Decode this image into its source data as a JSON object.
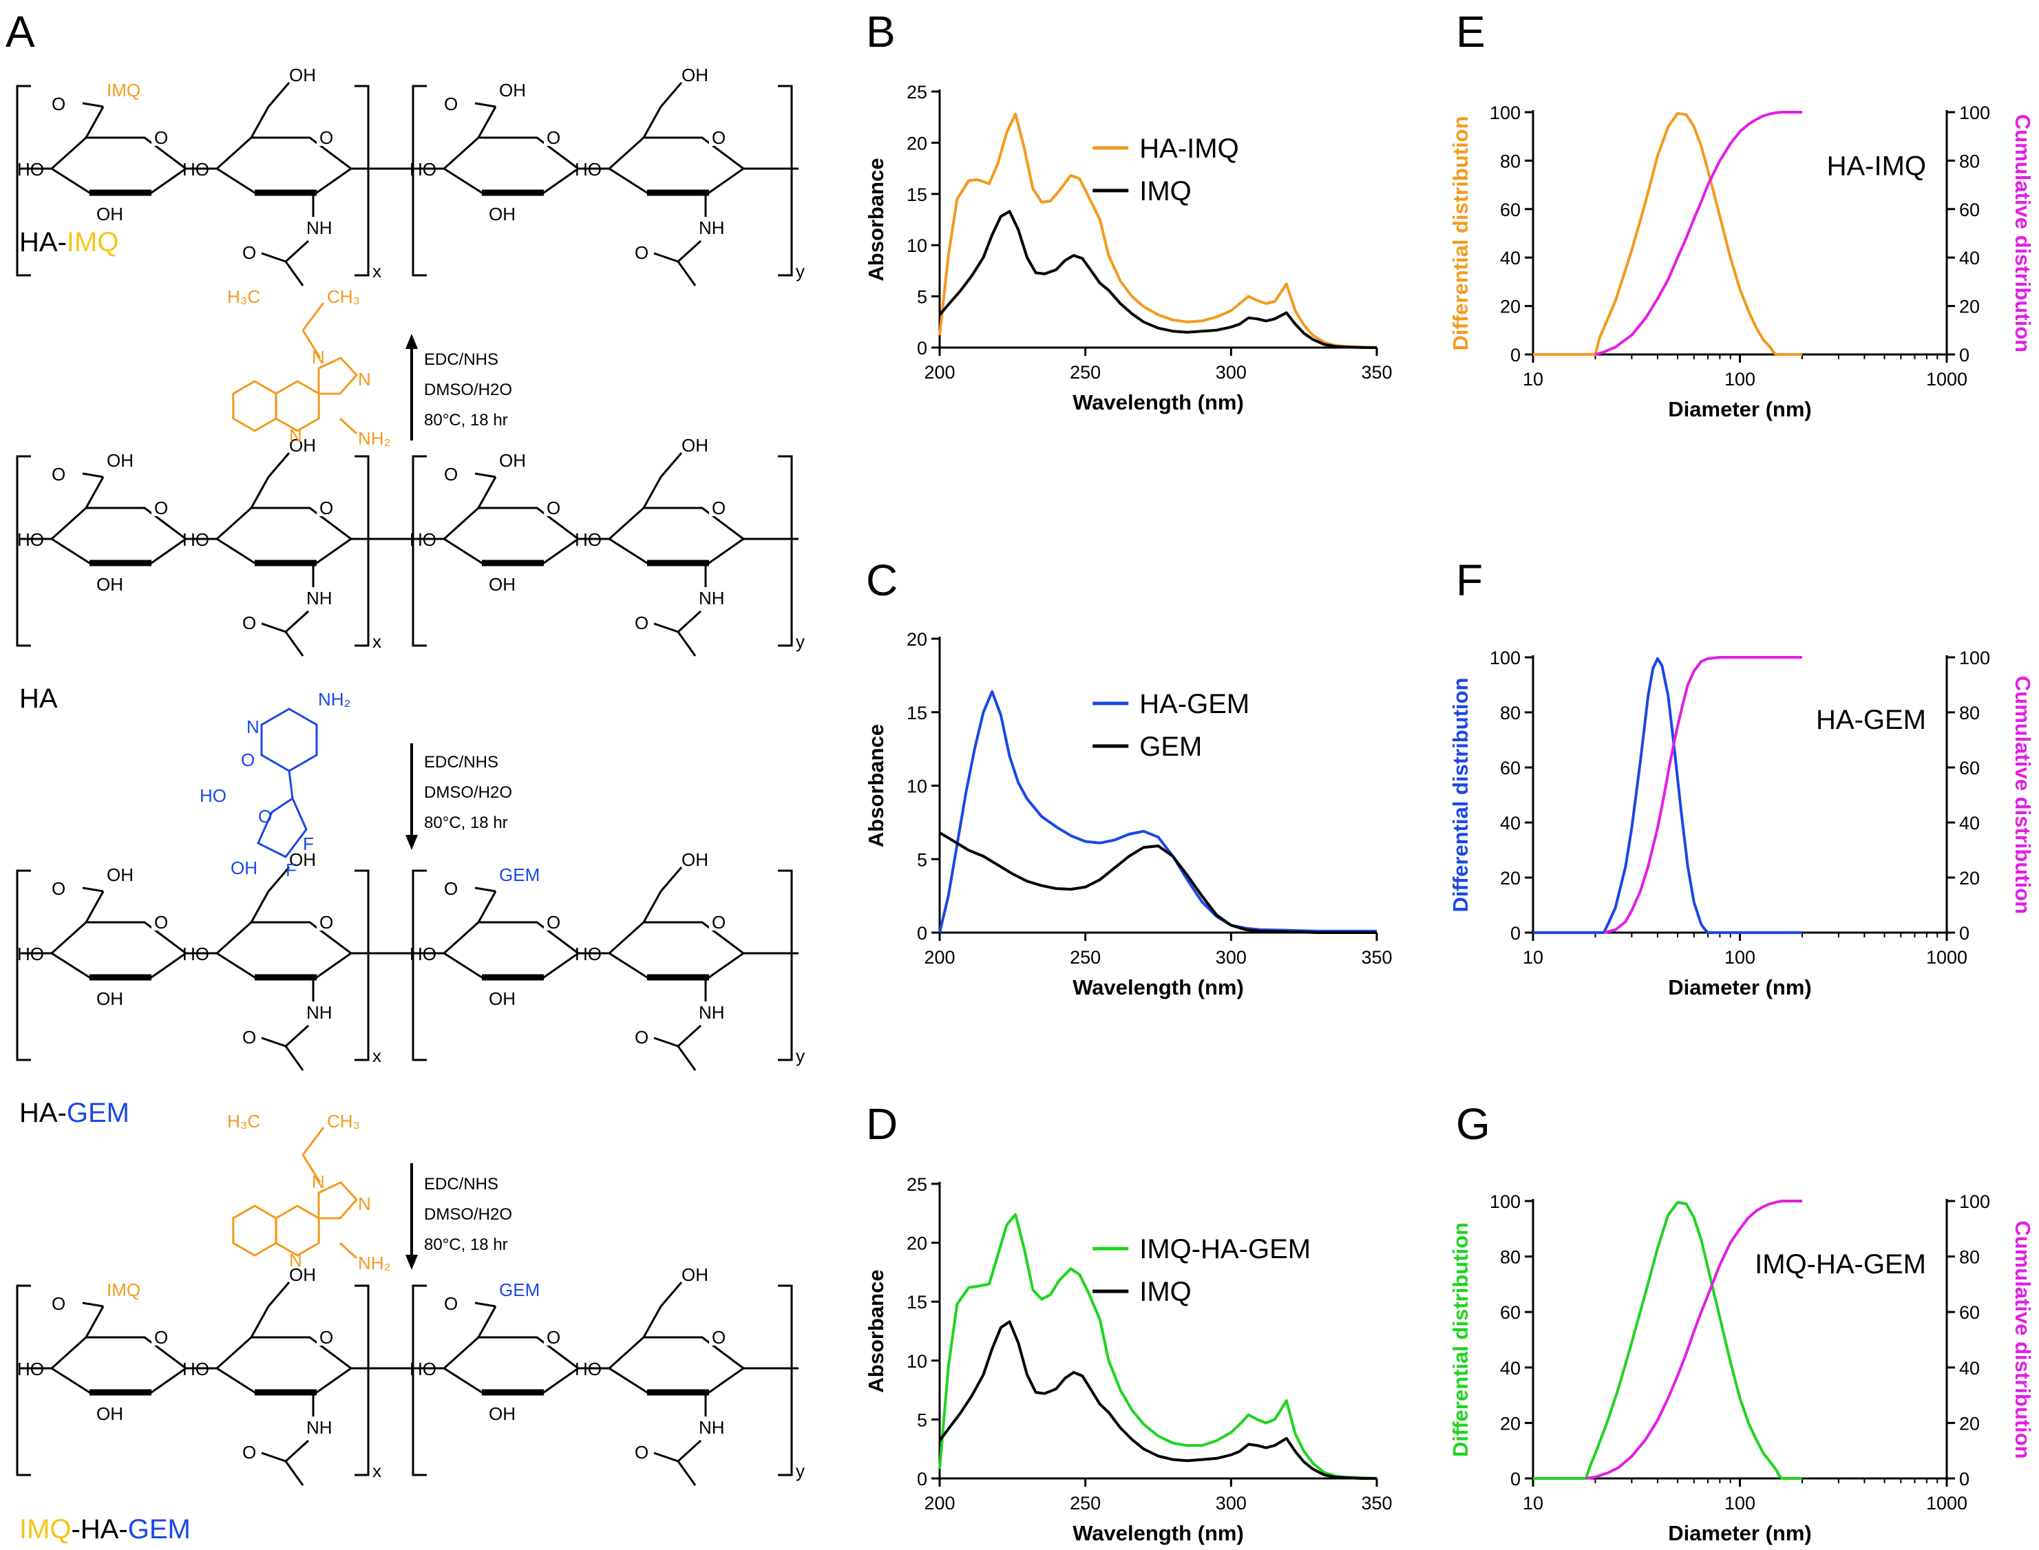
{
  "panels": {
    "A": {
      "letter": "A",
      "structures": [
        {
          "label_parts": [
            {
              "text": "HA-",
              "color": "#000000"
            },
            {
              "text": "IMQ",
              "color": "#f5c518"
            }
          ],
          "left_group": "IMQ",
          "left_group_color": "#f39a1e",
          "right_group": "OH",
          "right_group_color": "#000000"
        },
        {
          "label_parts": [
            {
              "text": "HA",
              "color": "#000000"
            }
          ],
          "left_group": "OH",
          "left_group_color": "#000000",
          "right_group": "OH",
          "right_group_color": "#000000"
        },
        {
          "label_parts": [
            {
              "text": "HA-",
              "color": "#000000"
            },
            {
              "text": "GEM",
              "color": "#1a47e6"
            }
          ],
          "left_group": "OH",
          "left_group_color": "#000000",
          "right_group": "GEM",
          "right_group_color": "#1a47e6"
        },
        {
          "label_parts": [
            {
              "text": "IMQ",
              "color": "#f5c518"
            },
            {
              "text": "-HA-",
              "color": "#000000"
            },
            {
              "text": "GEM",
              "color": "#1a47e6"
            }
          ],
          "left_group": "IMQ",
          "left_group_color": "#f39a1e",
          "right_group": "GEM",
          "right_group_color": "#1a47e6"
        }
      ],
      "ring_labels": {
        "oh": "OH",
        "o": "O",
        "nh": "NH",
        "n": "N",
        "nh2": "NH₂",
        "f": "F",
        "ho": "HO",
        "h3c": "H₃C",
        "ch3": "CH₃",
        "sub_x": "x",
        "sub_y": "y"
      },
      "reactions": [
        {
          "direction": "up",
          "lines": [
            "EDC/NHS",
            "DMSO/H2O",
            "80°C, 18 hr"
          ],
          "reagent": "imiquimod",
          "color": "#f39a1e"
        },
        {
          "direction": "down",
          "lines": [
            "EDC/NHS",
            "DMSO/H2O",
            "80°C, 18 hr"
          ],
          "reagent": "gemcitabine",
          "color": "#1a47e6"
        },
        {
          "direction": "down",
          "lines": [
            "EDC/NHS",
            "DMSO/H2O",
            "80°C, 18 hr"
          ],
          "reagent": "imiquimod",
          "color": "#f39a1e"
        }
      ]
    }
  },
  "chart_data": [
    {
      "panel": "B",
      "type": "line",
      "xlabel": "Wavelength (nm)",
      "ylabel": "Absorbance",
      "xlim": [
        200,
        350
      ],
      "ylim": [
        0,
        25
      ],
      "xticks": [
        200,
        250,
        300,
        350
      ],
      "yticks": [
        0,
        5,
        10,
        15,
        20,
        25
      ],
      "legend_position": "top-right",
      "series": [
        {
          "name": "HA-IMQ",
          "color": "#f39a1e",
          "x": [
            200,
            203,
            206,
            210,
            213,
            217,
            220,
            223,
            226,
            229,
            232,
            235,
            238,
            241,
            245,
            248,
            251,
            255,
            258,
            262,
            266,
            270,
            275,
            280,
            285,
            290,
            295,
            300,
            303,
            306,
            309,
            312,
            315,
            319,
            322,
            325,
            328,
            332,
            336,
            340,
            345,
            350
          ],
          "y": [
            1.2,
            9,
            14.5,
            16.3,
            16.4,
            16,
            18,
            21,
            22.8,
            19.5,
            15.5,
            14.2,
            14.3,
            15.3,
            16.8,
            16.5,
            14.8,
            12.5,
            9,
            6.5,
            5,
            4,
            3.2,
            2.7,
            2.5,
            2.6,
            3,
            3.6,
            4.3,
            5,
            4.6,
            4.3,
            4.5,
            6.2,
            3.6,
            2.2,
            1.2,
            0.5,
            0.2,
            0.1,
            0.05,
            0
          ]
        },
        {
          "name": "IMQ",
          "color": "#000000",
          "x": [
            200,
            203,
            207,
            211,
            215,
            218,
            221,
            224,
            227,
            230,
            233,
            236,
            240,
            243,
            246,
            249,
            252,
            255,
            258,
            262,
            266,
            270,
            275,
            280,
            285,
            290,
            295,
            300,
            303,
            306,
            309,
            312,
            315,
            319,
            322,
            325,
            328,
            332,
            336,
            340,
            345,
            350
          ],
          "y": [
            3.2,
            4.2,
            5.5,
            7,
            8.8,
            11,
            12.8,
            13.3,
            11.5,
            8.8,
            7.3,
            7.2,
            7.6,
            8.5,
            9,
            8.7,
            7.5,
            6.3,
            5.6,
            4.3,
            3.3,
            2.5,
            1.9,
            1.6,
            1.5,
            1.6,
            1.7,
            2,
            2.3,
            2.9,
            2.8,
            2.6,
            2.8,
            3.4,
            2.3,
            1.4,
            0.8,
            0.3,
            0.1,
            0.05,
            0,
            0
          ]
        }
      ]
    },
    {
      "panel": "C",
      "type": "line",
      "xlabel": "Wavelength (nm)",
      "ylabel": "Absorbance",
      "xlim": [
        200,
        350
      ],
      "ylim": [
        0,
        20
      ],
      "xticks": [
        200,
        250,
        300,
        350
      ],
      "yticks": [
        0,
        5,
        10,
        15,
        20
      ],
      "legend_position": "top-right",
      "series": [
        {
          "name": "HA-GEM",
          "color": "#1a47e6",
          "x": [
            200,
            203,
            206,
            209,
            212,
            215,
            218,
            221,
            224,
            227,
            230,
            235,
            240,
            245,
            250,
            255,
            260,
            265,
            270,
            275,
            280,
            285,
            290,
            295,
            300,
            305,
            310,
            320,
            330,
            340,
            350
          ],
          "y": [
            0,
            2.5,
            6,
            9.5,
            12.5,
            15,
            16.4,
            14.8,
            12,
            10.2,
            9.1,
            7.9,
            7.2,
            6.6,
            6.2,
            6.1,
            6.3,
            6.7,
            6.9,
            6.5,
            5.2,
            3.6,
            2.1,
            1.1,
            0.5,
            0.3,
            0.2,
            0.15,
            0.1,
            0.1,
            0.1
          ]
        },
        {
          "name": "GEM",
          "color": "#000000",
          "x": [
            200,
            205,
            210,
            215,
            220,
            225,
            230,
            235,
            240,
            245,
            250,
            255,
            260,
            265,
            270,
            275,
            280,
            285,
            290,
            295,
            300,
            305,
            310,
            320,
            330,
            340,
            350
          ],
          "y": [
            6.8,
            6.2,
            5.6,
            5.2,
            4.6,
            4,
            3.5,
            3.2,
            3,
            2.95,
            3.1,
            3.6,
            4.4,
            5.2,
            5.8,
            5.9,
            5.2,
            3.9,
            2.5,
            1.2,
            0.5,
            0.2,
            0.1,
            0.05,
            0,
            0,
            0
          ]
        }
      ]
    },
    {
      "panel": "D",
      "type": "line",
      "xlabel": "Wavelength (nm)",
      "ylabel": "Absorbance",
      "xlim": [
        200,
        350
      ],
      "ylim": [
        0,
        25
      ],
      "xticks": [
        200,
        250,
        300,
        350
      ],
      "yticks": [
        0,
        5,
        10,
        15,
        20,
        25
      ],
      "legend_position": "top-right",
      "series": [
        {
          "name": "IMQ-HA-GEM",
          "color": "#1fd41f",
          "x": [
            200,
            203,
            206,
            210,
            213,
            217,
            220,
            223,
            226,
            229,
            232,
            235,
            238,
            241,
            245,
            248,
            251,
            255,
            258,
            262,
            266,
            270,
            275,
            280,
            285,
            290,
            295,
            300,
            303,
            306,
            309,
            312,
            315,
            319,
            322,
            325,
            328,
            332,
            336,
            340,
            345,
            350
          ],
          "y": [
            0.8,
            9.5,
            14.8,
            16.2,
            16.3,
            16.5,
            19,
            21.5,
            22.4,
            19.5,
            16,
            15.2,
            15.6,
            16.8,
            17.8,
            17.3,
            15.8,
            13.5,
            10,
            7.5,
            5.8,
            4.6,
            3.6,
            3,
            2.8,
            2.8,
            3.2,
            3.9,
            4.6,
            5.4,
            5,
            4.7,
            5,
            6.6,
            3.8,
            2.3,
            1.3,
            0.5,
            0.2,
            0.1,
            0.05,
            0
          ]
        },
        {
          "name": "IMQ",
          "color": "#000000",
          "x": [
            200,
            203,
            207,
            211,
            215,
            218,
            221,
            224,
            227,
            230,
            233,
            236,
            240,
            243,
            246,
            249,
            252,
            255,
            258,
            262,
            266,
            270,
            275,
            280,
            285,
            290,
            295,
            300,
            303,
            306,
            309,
            312,
            315,
            319,
            322,
            325,
            328,
            332,
            336,
            340,
            345,
            350
          ],
          "y": [
            3.2,
            4.2,
            5.5,
            7,
            8.8,
            11,
            12.8,
            13.3,
            11.5,
            8.8,
            7.3,
            7.2,
            7.6,
            8.5,
            9,
            8.7,
            7.5,
            6.3,
            5.6,
            4.3,
            3.3,
            2.5,
            1.9,
            1.6,
            1.5,
            1.6,
            1.7,
            2,
            2.3,
            2.9,
            2.8,
            2.6,
            2.8,
            3.4,
            2.3,
            1.4,
            0.8,
            0.3,
            0.1,
            0.05,
            0,
            0
          ]
        }
      ]
    },
    {
      "panel": "E",
      "type": "line",
      "sample": "HA-IMQ",
      "xlabel": "Diameter (nm)",
      "ylabel": "Differential distribution",
      "ylabel_right": "Cumulative distribution",
      "x_scale": "log",
      "xlim": [
        10,
        1000
      ],
      "ylim": [
        0,
        100
      ],
      "xticks": [
        10,
        100,
        1000
      ],
      "yticks": [
        0,
        20,
        40,
        60,
        80,
        100
      ],
      "series": [
        {
          "name": "Differential distribution",
          "color": "#f39a1e",
          "x": [
            10,
            20,
            21,
            22,
            25,
            30,
            35,
            40,
            45,
            50,
            55,
            60,
            65,
            70,
            80,
            90,
            100,
            110,
            120,
            130,
            140,
            145,
            150,
            200
          ],
          "y": [
            0,
            0,
            7,
            11,
            22,
            43,
            63,
            82,
            94,
            99.5,
            99,
            94,
            86,
            76,
            57,
            40,
            27,
            18,
            11,
            6,
            3,
            1,
            0,
            0
          ]
        },
        {
          "name": "Cumulative distribution",
          "color": "#e31ee3",
          "x": [
            20,
            22,
            25,
            30,
            35,
            40,
            45,
            50,
            55,
            60,
            65,
            70,
            80,
            90,
            100,
            110,
            120,
            130,
            140,
            150,
            160,
            170,
            180,
            200
          ],
          "y": [
            0,
            1,
            3,
            8,
            15,
            23,
            31,
            40,
            48,
            56,
            63,
            70,
            80,
            87,
            92,
            95,
            97,
            98.5,
            99.3,
            99.8,
            100,
            100,
            100,
            100
          ]
        }
      ]
    },
    {
      "panel": "F",
      "type": "line",
      "sample": "HA-GEM",
      "xlabel": "Diameter (nm)",
      "ylabel": "Differential distribution",
      "ylabel_right": "Cumulative distribution",
      "x_scale": "log",
      "xlim": [
        10,
        1000
      ],
      "ylim": [
        0,
        100
      ],
      "xticks": [
        10,
        100,
        1000
      ],
      "yticks": [
        0,
        20,
        40,
        60,
        80,
        100
      ],
      "series": [
        {
          "name": "Differential distribution",
          "color": "#1a47e6",
          "x": [
            10,
            22,
            23,
            25,
            28,
            30,
            33,
            36,
            38,
            40,
            42,
            45,
            48,
            52,
            56,
            60,
            65,
            68,
            70,
            200
          ],
          "y": [
            0,
            0,
            3,
            9,
            24,
            38,
            62,
            86,
            96,
            99.5,
            97,
            86,
            68,
            44,
            24,
            11,
            3,
            1,
            0,
            0
          ]
        },
        {
          "name": "Cumulative distribution",
          "color": "#e31ee3",
          "x": [
            22,
            25,
            28,
            30,
            33,
            36,
            40,
            43,
            46,
            50,
            53,
            56,
            60,
            65,
            70,
            80,
            90,
            100,
            150,
            200
          ],
          "y": [
            0,
            1,
            4,
            8,
            15,
            24,
            38,
            50,
            62,
            75,
            83,
            90,
            95,
            98.5,
            99.5,
            100,
            100,
            100,
            100,
            100
          ]
        }
      ]
    },
    {
      "panel": "G",
      "type": "line",
      "sample": "IMQ-HA-GEM",
      "xlabel": "Diameter (nm)",
      "ylabel": "Differential distribution",
      "ylabel_right": "Cumulative distribution",
      "x_scale": "log",
      "xlim": [
        10,
        1000
      ],
      "ylim": [
        0,
        100
      ],
      "xticks": [
        10,
        100,
        1000
      ],
      "yticks": [
        0,
        20,
        40,
        60,
        80,
        100
      ],
      "series": [
        {
          "name": "Differential distribution",
          "color": "#1fd41f",
          "x": [
            10,
            18,
            19,
            20,
            23,
            26,
            30,
            35,
            40,
            45,
            50,
            55,
            60,
            65,
            70,
            80,
            90,
            100,
            110,
            120,
            130,
            140,
            150,
            155,
            160,
            200
          ],
          "y": [
            0,
            0,
            5,
            9,
            21,
            33,
            49,
            67,
            83,
            95,
            99.5,
            99,
            94,
            86,
            76,
            58,
            42,
            29,
            20,
            14,
            9,
            6,
            3,
            1,
            0,
            0
          ]
        },
        {
          "name": "Cumulative distribution",
          "color": "#e31ee3",
          "x": [
            18,
            20,
            23,
            26,
            30,
            35,
            40,
            45,
            50,
            55,
            60,
            65,
            70,
            80,
            90,
            100,
            110,
            120,
            130,
            140,
            150,
            160,
            170,
            200
          ],
          "y": [
            0,
            0.5,
            2,
            4,
            8,
            14,
            21,
            29,
            37,
            45,
            53,
            60,
            66,
            77,
            85,
            90,
            94,
            96.5,
            98,
            99,
            99.6,
            100,
            100,
            100
          ]
        }
      ]
    }
  ]
}
